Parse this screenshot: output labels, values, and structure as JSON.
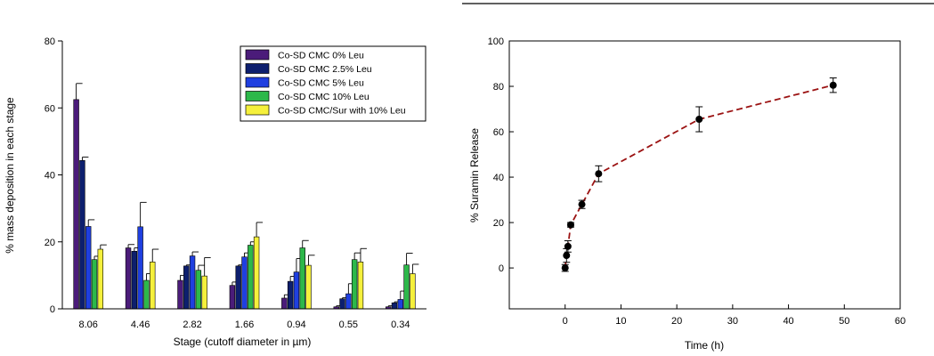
{
  "chart_data": [
    {
      "type": "bar",
      "title": "",
      "xlabel": "Stage (cutoff diameter in µm)",
      "ylabel": "%  mass deposition in each stage",
      "ylim": [
        0,
        80
      ],
      "yticks": [
        0,
        20,
        40,
        60,
        80
      ],
      "categories": [
        "8.06",
        "4.46",
        "2.82",
        "1.66",
        "0.94",
        "0.55",
        "0.34"
      ],
      "error_bars": "one-sided (upper)",
      "legend_position": "top-right",
      "series": [
        {
          "name": "Co-SD CMC  0% Leu",
          "color": "#4b1c7a",
          "values": [
            62.5,
            18.2,
            8.5,
            7.0,
            3.2,
            0.6,
            0.6
          ],
          "errors": [
            4.8,
            1.0,
            1.5,
            1.0,
            1.0,
            0.3,
            0.3
          ]
        },
        {
          "name": "Co-SD CMC  2.5% Leu",
          "color": "#0d1f6e",
          "values": [
            44.3,
            17.2,
            12.8,
            12.8,
            8.2,
            3.0,
            1.8
          ],
          "errors": [
            1.0,
            1.0,
            0.3,
            0.3,
            1.5,
            0.3,
            0.3
          ]
        },
        {
          "name": "Co-SD CMC 5% Leu",
          "color": "#1f3fe0",
          "values": [
            24.6,
            24.5,
            15.8,
            15.5,
            11.0,
            4.5,
            2.8
          ],
          "errors": [
            2.0,
            7.3,
            1.2,
            1.2,
            4.0,
            3.0,
            2.5
          ]
        },
        {
          "name": "Co-SD CMC 10% Leu",
          "color": "#2db84a",
          "values": [
            14.7,
            8.5,
            11.5,
            19.0,
            18.2,
            14.7,
            13.1
          ],
          "errors": [
            1.0,
            2.0,
            1.5,
            1.0,
            2.2,
            2.0,
            3.5
          ]
        },
        {
          "name": "Co-SD CMC/Sur with 10% Leu",
          "color": "#f5f03c",
          "values": [
            17.8,
            14.0,
            9.8,
            21.5,
            13.0,
            14.0,
            10.5
          ],
          "errors": [
            1.3,
            3.8,
            5.5,
            4.3,
            3.0,
            4.0,
            2.8
          ]
        }
      ]
    },
    {
      "type": "line",
      "title": "",
      "xlabel": "Time (h)",
      "ylabel": "% Suramin Release",
      "xlim": [
        -10,
        60
      ],
      "ylim": [
        -18,
        100
      ],
      "xticks": [
        0,
        10,
        20,
        30,
        40,
        50,
        60
      ],
      "yticks": [
        0,
        20,
        40,
        60,
        80,
        100
      ],
      "grid": false,
      "series": [
        {
          "color": "#9b1212",
          "line_style": "dashed",
          "marker": "filled circle",
          "x": [
            0,
            0.25,
            0.5,
            1,
            3,
            6,
            24,
            48
          ],
          "y": [
            0,
            5.5,
            9.5,
            19,
            28,
            41.5,
            65.5,
            80.5
          ],
          "errors": [
            1.5,
            3.0,
            2.5,
            1.0,
            1.8,
            3.5,
            5.5,
            3.2
          ]
        }
      ]
    }
  ]
}
